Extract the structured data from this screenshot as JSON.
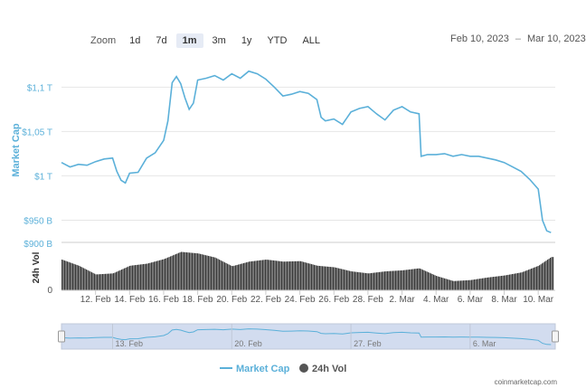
{
  "toolbar": {
    "zoom_label": "Zoom",
    "buttons": [
      "1d",
      "7d",
      "1m",
      "3m",
      "1y",
      "YTD",
      "ALL"
    ],
    "active": "1m",
    "range_from": "Feb 10, 2023",
    "range_to": "Mar 10, 2023"
  },
  "credit": "coinmarketcap.com",
  "colors": {
    "line": "#5bb0d9",
    "volume": "#3a3a3a",
    "navigator_fill": "#d2dcef",
    "grid": "#e6e6e6"
  },
  "chart_data": {
    "type": "line",
    "title": "",
    "ylabel": "Market Cap",
    "ylabel_volume": "24h Vol",
    "ylim": [
      925,
      1135
    ],
    "y_ticks": [
      950,
      1000,
      1050,
      1100
    ],
    "y_tick_labels": [
      "$950 B",
      "$1 T",
      "$1,05 T",
      "$1,1 T"
    ],
    "volume_ylim": [
      0,
      900
    ],
    "volume_tick_labels": [
      "$900 B",
      "0"
    ],
    "x_range": [
      "2023-02-10",
      "2023-03-11"
    ],
    "x_ticks": [
      "2023-02-12",
      "2023-02-14",
      "2023-02-16",
      "2023-02-18",
      "2023-02-20",
      "2023-02-22",
      "2023-02-24",
      "2023-02-26",
      "2023-02-28",
      "2023-03-02",
      "2023-03-04",
      "2023-03-06",
      "2023-03-08",
      "2023-03-10"
    ],
    "x_tick_labels": [
      "12. Feb",
      "14. Feb",
      "16. Feb",
      "18. Feb",
      "20. Feb",
      "22. Feb",
      "24. Feb",
      "26. Feb",
      "28. Feb",
      "2. Mar",
      "4. Mar",
      "6. Mar",
      "8. Mar",
      "10. Mar"
    ],
    "navigator_ticks": [
      "2023-02-13",
      "2023-02-20",
      "2023-02-27",
      "2023-03-06"
    ],
    "navigator_labels": [
      "13. Feb",
      "20. Feb",
      "27. Feb",
      "6. Mar"
    ],
    "legend": [
      "Market Cap",
      "24h Vol"
    ],
    "legend_position": "bottom",
    "series": [
      {
        "name": "Market Cap",
        "points": [
          [
            "2023-02-10 00:00",
            1015
          ],
          [
            "2023-02-10 12:00",
            1010
          ],
          [
            "2023-02-11 00:00",
            1013
          ],
          [
            "2023-02-11 12:00",
            1012
          ],
          [
            "2023-02-12 00:00",
            1016
          ],
          [
            "2023-02-12 12:00",
            1019
          ],
          [
            "2023-02-13 00:00",
            1020
          ],
          [
            "2023-02-13 06:00",
            1005
          ],
          [
            "2023-02-13 12:00",
            995
          ],
          [
            "2023-02-13 18:00",
            992
          ],
          [
            "2023-02-14 00:00",
            1003
          ],
          [
            "2023-02-14 12:00",
            1004
          ],
          [
            "2023-02-15 00:00",
            1020
          ],
          [
            "2023-02-15 12:00",
            1026
          ],
          [
            "2023-02-16 00:00",
            1040
          ],
          [
            "2023-02-16 06:00",
            1062
          ],
          [
            "2023-02-16 12:00",
            1105
          ],
          [
            "2023-02-16 18:00",
            1112
          ],
          [
            "2023-02-17 00:00",
            1104
          ],
          [
            "2023-02-17 06:00",
            1088
          ],
          [
            "2023-02-17 12:00",
            1075
          ],
          [
            "2023-02-17 18:00",
            1082
          ],
          [
            "2023-02-18 00:00",
            1108
          ],
          [
            "2023-02-18 12:00",
            1110
          ],
          [
            "2023-02-19 00:00",
            1113
          ],
          [
            "2023-02-19 12:00",
            1108
          ],
          [
            "2023-02-20 00:00",
            1115
          ],
          [
            "2023-02-20 12:00",
            1110
          ],
          [
            "2023-02-21 00:00",
            1118
          ],
          [
            "2023-02-21 12:00",
            1115
          ],
          [
            "2023-02-22 00:00",
            1109
          ],
          [
            "2023-02-22 12:00",
            1100
          ],
          [
            "2023-02-23 00:00",
            1090
          ],
          [
            "2023-02-23 12:00",
            1092
          ],
          [
            "2023-02-24 00:00",
            1095
          ],
          [
            "2023-02-24 12:00",
            1093
          ],
          [
            "2023-02-25 00:00",
            1086
          ],
          [
            "2023-02-25 06:00",
            1066
          ],
          [
            "2023-02-25 12:00",
            1062
          ],
          [
            "2023-02-26 00:00",
            1064
          ],
          [
            "2023-02-26 12:00",
            1058
          ],
          [
            "2023-02-27 00:00",
            1072
          ],
          [
            "2023-02-27 12:00",
            1076
          ],
          [
            "2023-02-28 00:00",
            1078
          ],
          [
            "2023-02-28 12:00",
            1070
          ],
          [
            "2023-03-01 00:00",
            1063
          ],
          [
            "2023-03-01 12:00",
            1074
          ],
          [
            "2023-03-02 00:00",
            1078
          ],
          [
            "2023-03-02 12:00",
            1072
          ],
          [
            "2023-03-03 00:00",
            1070
          ],
          [
            "2023-03-03 03:00",
            1022
          ],
          [
            "2023-03-03 12:00",
            1024
          ],
          [
            "2023-03-04 00:00",
            1024
          ],
          [
            "2023-03-04 12:00",
            1025
          ],
          [
            "2023-03-05 00:00",
            1022
          ],
          [
            "2023-03-05 12:00",
            1024
          ],
          [
            "2023-03-06 00:00",
            1022
          ],
          [
            "2023-03-06 12:00",
            1022
          ],
          [
            "2023-03-07 00:00",
            1020
          ],
          [
            "2023-03-07 12:00",
            1018
          ],
          [
            "2023-03-08 00:00",
            1015
          ],
          [
            "2023-03-08 12:00",
            1010
          ],
          [
            "2023-03-09 00:00",
            1005
          ],
          [
            "2023-03-09 12:00",
            996
          ],
          [
            "2023-03-10 00:00",
            985
          ],
          [
            "2023-03-10 06:00",
            950
          ],
          [
            "2023-03-10 12:00",
            938
          ],
          [
            "2023-03-10 18:00",
            936
          ]
        ]
      },
      {
        "name": "24h Vol",
        "points": [
          [
            "2023-02-10 00:00",
            600
          ],
          [
            "2023-02-11 00:00",
            480
          ],
          [
            "2023-02-12 00:00",
            310
          ],
          [
            "2023-02-13 00:00",
            330
          ],
          [
            "2023-02-14 00:00",
            480
          ],
          [
            "2023-02-15 00:00",
            520
          ],
          [
            "2023-02-16 00:00",
            610
          ],
          [
            "2023-02-17 00:00",
            750
          ],
          [
            "2023-02-18 00:00",
            720
          ],
          [
            "2023-02-19 00:00",
            640
          ],
          [
            "2023-02-20 00:00",
            470
          ],
          [
            "2023-02-21 00:00",
            560
          ],
          [
            "2023-02-22 00:00",
            600
          ],
          [
            "2023-02-23 00:00",
            560
          ],
          [
            "2023-02-24 00:00",
            570
          ],
          [
            "2023-02-25 00:00",
            480
          ],
          [
            "2023-02-26 00:00",
            450
          ],
          [
            "2023-02-27 00:00",
            370
          ],
          [
            "2023-02-28 00:00",
            330
          ],
          [
            "2023-03-01 00:00",
            370
          ],
          [
            "2023-03-02 00:00",
            390
          ],
          [
            "2023-03-03 00:00",
            430
          ],
          [
            "2023-03-04 00:00",
            280
          ],
          [
            "2023-03-05 00:00",
            180
          ],
          [
            "2023-03-06 00:00",
            200
          ],
          [
            "2023-03-07 00:00",
            250
          ],
          [
            "2023-03-08 00:00",
            290
          ],
          [
            "2023-03-09 00:00",
            350
          ],
          [
            "2023-03-10 00:00",
            480
          ],
          [
            "2023-03-10 18:00",
            650
          ]
        ]
      }
    ]
  }
}
